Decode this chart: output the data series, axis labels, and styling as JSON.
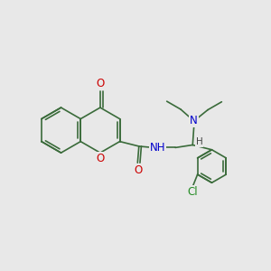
{
  "background_color": "#e8e8e8",
  "bond_color": "#3a6b3a",
  "bond_width": 1.2,
  "atom_colors": {
    "O": "#cc0000",
    "N": "#0000cc",
    "Cl": "#228B22",
    "H": "#444444"
  },
  "figsize": [
    3.0,
    3.0
  ],
  "dpi": 100,
  "xlim": [
    0,
    10
  ],
  "ylim": [
    0,
    10
  ]
}
